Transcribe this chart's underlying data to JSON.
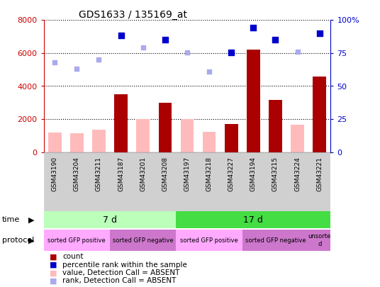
{
  "title": "GDS1633 / 135169_at",
  "samples": [
    "GSM43190",
    "GSM43204",
    "GSM43211",
    "GSM43187",
    "GSM43201",
    "GSM43208",
    "GSM43197",
    "GSM43218",
    "GSM43227",
    "GSM43194",
    "GSM43215",
    "GSM43224",
    "GSM43221"
  ],
  "count_values": [
    null,
    null,
    null,
    3500,
    null,
    3000,
    null,
    null,
    1700,
    6200,
    3150,
    null,
    4600
  ],
  "count_absent_values": [
    1200,
    1150,
    1350,
    null,
    2000,
    null,
    2000,
    1250,
    null,
    null,
    null,
    1650,
    null
  ],
  "percentile_values": [
    null,
    null,
    null,
    88.5,
    null,
    85.0,
    null,
    null,
    75.5,
    94.5,
    85.0,
    null,
    90.0
  ],
  "percentile_absent_values": [
    68.0,
    63.0,
    70.0,
    null,
    79.0,
    null,
    75.5,
    61.0,
    null,
    null,
    null,
    76.0,
    null
  ],
  "ylim_left": [
    0,
    8000
  ],
  "ylim_right": [
    0,
    100
  ],
  "yticks_left": [
    0,
    2000,
    4000,
    6000,
    8000
  ],
  "yticks_right": [
    0,
    25,
    50,
    75,
    100
  ],
  "ytick_labels_left": [
    "0",
    "2000",
    "4000",
    "6000",
    "8000"
  ],
  "ytick_labels_right": [
    "0",
    "25",
    "50",
    "75",
    "100%"
  ],
  "left_axis_color": "#cc0000",
  "right_axis_color": "#0000cc",
  "bar_color_count": "#aa0000",
  "bar_color_absent": "#ffbbbb",
  "scatter_color_present": "#0000cc",
  "scatter_color_absent": "#aaaaee",
  "time_groups": [
    {
      "label": "7 d",
      "start": 0,
      "end": 6,
      "color": "#bbffbb"
    },
    {
      "label": "17 d",
      "start": 6,
      "end": 13,
      "color": "#44dd44"
    }
  ],
  "protocol_groups": [
    {
      "label": "sorted GFP positive",
      "start": 0,
      "end": 3,
      "color": "#ffaaff"
    },
    {
      "label": "sorted GFP negative",
      "start": 3,
      "end": 6,
      "color": "#cc77cc"
    },
    {
      "label": "sorted GFP positive",
      "start": 6,
      "end": 9,
      "color": "#ffaaff"
    },
    {
      "label": "sorted GFP negative",
      "start": 9,
      "end": 12,
      "color": "#cc77cc"
    },
    {
      "label": "unsorte\nd",
      "start": 12,
      "end": 13,
      "color": "#cc77cc"
    }
  ],
  "legend_items": [
    {
      "label": "count",
      "color": "#aa0000"
    },
    {
      "label": "percentile rank within the sample",
      "color": "#0000cc"
    },
    {
      "label": "value, Detection Call = ABSENT",
      "color": "#ffbbbb"
    },
    {
      "label": "rank, Detection Call = ABSENT",
      "color": "#aaaaee"
    }
  ],
  "background_color": "#ffffff"
}
